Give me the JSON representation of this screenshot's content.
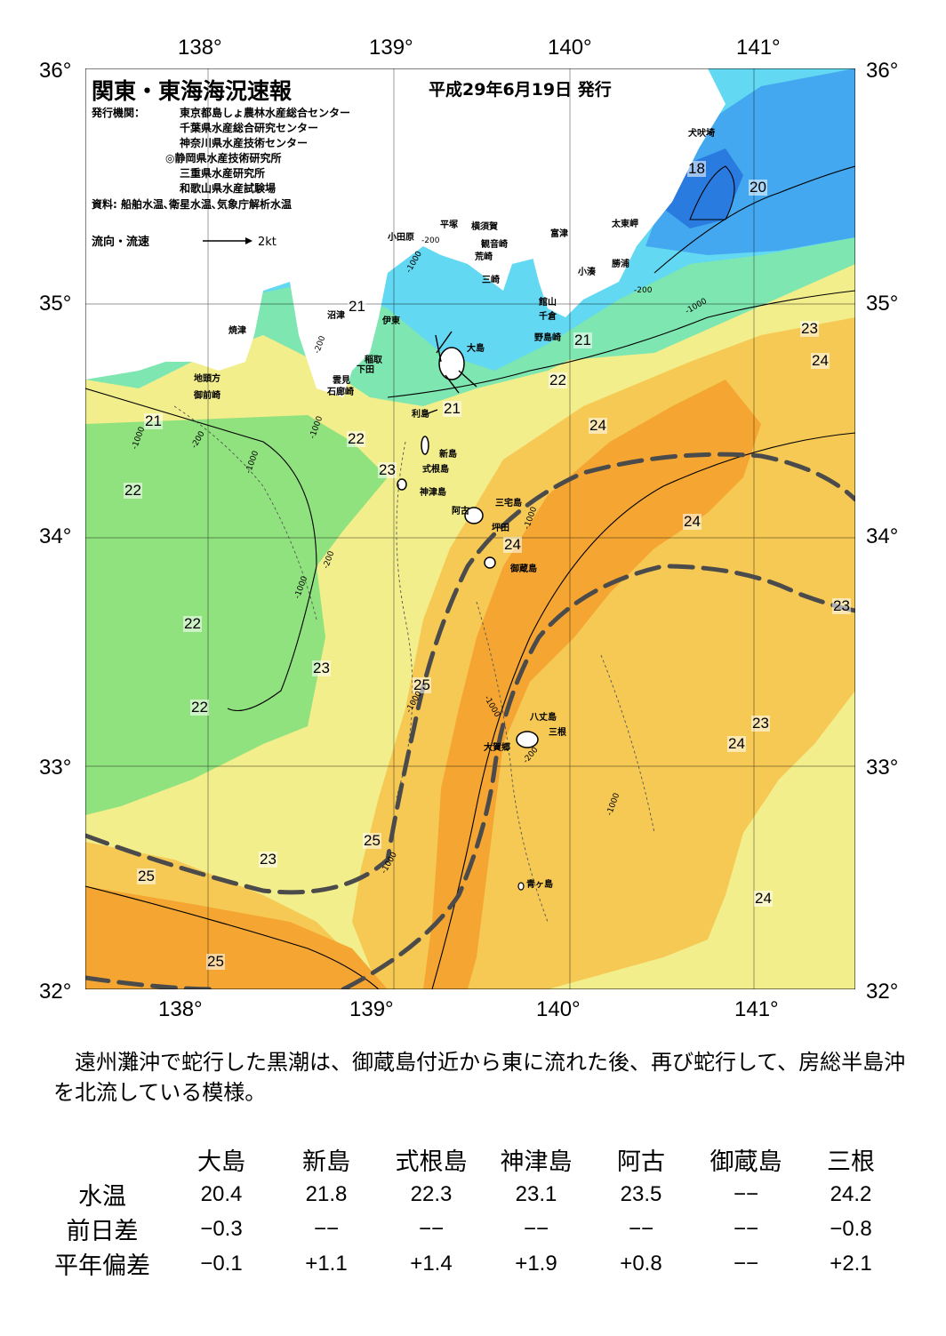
{
  "header": {
    "title": "関東・東海海況速報",
    "date": "平成29年6月19日 発行",
    "agencies_label": "発行機関：",
    "agencies": [
      "東京都島しょ農林水産総合センター",
      "千葉県水産総合研究センター",
      "神奈川県水産技術センター",
      "◎静岡県水産技術研究所",
      "三重県水産研究所",
      "和歌山県水産試験場"
    ],
    "sources": "資料: 船舶水温､衛星水温､気象庁解析水温",
    "flow_label": "流向・流速",
    "flow_scale": "2kt"
  },
  "axes": {
    "longitudes": [
      "138°",
      "139°",
      "140°",
      "141°"
    ],
    "latitudes": [
      "36°",
      "35°",
      "34°",
      "33°",
      "32°"
    ]
  },
  "places": {
    "inubozaki": "犬吠埼",
    "taitozaki": "太東岬",
    "katsuura": "勝浦",
    "kominato": "小湊",
    "futtsu": "富津",
    "kannonzaki": "観音崎",
    "arasaki": "荒崎",
    "misaki": "三崎",
    "yokosuka": "横須賀",
    "hiratsuka": "平塚",
    "odawara": "小田原",
    "tateyama": "館山",
    "chikura": "千倉",
    "nojimazaki": "野島崎",
    "numazu": "沼津",
    "ito": "伊東",
    "inatori": "稲取",
    "shimoda": "下田",
    "kumomi": "雲見",
    "irozaki": "石廊崎",
    "yaizu": "焼津",
    "jitokata": "地頭方",
    "omaezaki": "御前崎",
    "oshima": "大島",
    "toshima": "利島",
    "niijima": "新島",
    "shikinejima": "式根島",
    "kozushima": "神津島",
    "miyakejima": "三宅島",
    "ako": "阿古",
    "tsubota": "坪田",
    "mikurajima": "御蔵島",
    "hachijojima": "八丈島",
    "mitsune": "三根",
    "okago": "大賀郷",
    "aogashima": "青ヶ島"
  },
  "isotherms": [
    "18",
    "20",
    "21",
    "21",
    "21",
    "21",
    "22",
    "22",
    "22",
    "22",
    "22",
    "23",
    "23",
    "23",
    "23",
    "23",
    "23",
    "24",
    "24",
    "24",
    "24",
    "24",
    "24",
    "25",
    "25",
    "25",
    "25",
    "25",
    "25"
  ],
  "depth_labels": [
    "-1000",
    "-200",
    "-1000",
    "-200",
    "-1000",
    "-200",
    "-1000",
    "-200",
    "-1000",
    "-1000",
    "-1000",
    "-200",
    "-1000",
    "-1000",
    "-1000",
    "-1000",
    "-200"
  ],
  "colors": {
    "t18": "#2a7be0",
    "t19": "#43a8ef",
    "t20": "#62d8f2",
    "t21": "#7ee6b0",
    "t22": "#8fe27e",
    "t23": "#f2ee8c",
    "t24": "#f6c955",
    "t25": "#f5a632",
    "kuroshio": "#4b4b4b",
    "land": "#ffffff"
  },
  "summary": "遠州灘沖で蛇行した黒潮は、御蔵島付近から東に流れた後、再び蛇行して、房総半島沖を北流している模様。",
  "table": {
    "stations": [
      "大島",
      "新島",
      "式根島",
      "神津島",
      "阿古",
      "御蔵島",
      "三根"
    ],
    "rows": [
      {
        "label": "水温",
        "values": [
          "20.4",
          "21.8",
          "22.3",
          "23.1",
          "23.5",
          "−−",
          "24.2"
        ]
      },
      {
        "label": "前日差",
        "values": [
          "−0.3",
          "−−",
          "−−",
          "−−",
          "−−",
          "−−",
          "−0.8"
        ]
      },
      {
        "label": "平年偏差",
        "values": [
          "−0.1",
          "+1.1",
          "+1.4",
          "+1.9",
          "+0.8",
          "−−",
          "+2.1"
        ]
      }
    ]
  }
}
